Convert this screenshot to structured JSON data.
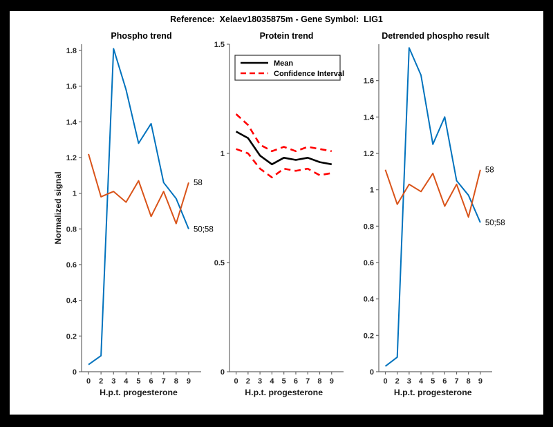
{
  "figure": {
    "title": "Reference:  Xelaev18035875m - Gene Symbol:  LIG1"
  },
  "colors": {
    "blue": "#0072BD",
    "orange": "#D95319",
    "red": "#FF0000",
    "black": "#000000",
    "axis": "#666666",
    "tick_text": "#262626",
    "label_text": "#1a1a1a",
    "background": "#FFFFFF",
    "frame": "#000000"
  },
  "chart_data": [
    {
      "type": "line",
      "title": "Phospho trend",
      "xlabel": "H.p.t. progesterone",
      "ylabel": "Normalized signal",
      "x_tick_labels": [
        "0",
        "2",
        "3",
        "4",
        "5",
        "6",
        "7",
        "8",
        "9"
      ],
      "x_values": [
        0,
        2,
        3,
        4,
        5,
        6,
        7,
        8,
        9
      ],
      "ylim": [
        0,
        1.835
      ],
      "y_ticks": [
        0,
        0.2,
        0.4,
        0.6,
        0.8,
        1,
        1.2,
        1.4,
        1.6,
        1.8
      ],
      "y_tick_labels": [
        "0",
        "0.2",
        "0.4",
        "0.6",
        "0.8",
        "1",
        "1.2",
        "1.4",
        "1.6",
        "1.8"
      ],
      "grid": false,
      "legend": null,
      "series": [
        {
          "name": "phospho-site-50-58",
          "color_key": "blue",
          "dash": null,
          "width": 2,
          "values": [
            0.04,
            0.09,
            1.81,
            1.58,
            1.28,
            1.39,
            1.06,
            0.97,
            0.8
          ],
          "end_label": "50;58"
        },
        {
          "name": "phospho-site-58",
          "color_key": "orange",
          "dash": null,
          "width": 2,
          "values": [
            1.22,
            0.98,
            1.01,
            0.95,
            1.07,
            0.87,
            1.01,
            0.83,
            1.06
          ],
          "end_label": "58"
        }
      ]
    },
    {
      "type": "line",
      "title": "Protein trend",
      "xlabel": "H.p.t. progesterone",
      "ylabel": null,
      "x_tick_labels": [
        "0",
        "2",
        "3",
        "4",
        "5",
        "6",
        "7",
        "8",
        "9"
      ],
      "x_values": [
        0,
        2,
        3,
        4,
        5,
        6,
        7,
        8,
        9
      ],
      "ylim": [
        0,
        1.5
      ],
      "y_ticks": [
        0,
        0.5,
        1,
        1.5
      ],
      "y_tick_labels": [
        "0",
        "0.5",
        "1",
        "1.5"
      ],
      "grid": false,
      "legend": {
        "position": "top-left-inside",
        "entries": [
          {
            "label": "Mean",
            "color_key": "black",
            "dash": null
          },
          {
            "label": "Confidence Interval",
            "color_key": "red",
            "dash": "8 5"
          }
        ]
      },
      "series": [
        {
          "name": "protein-mean",
          "color_key": "black",
          "dash": null,
          "width": 2.6,
          "values": [
            1.1,
            1.07,
            0.99,
            0.95,
            0.98,
            0.97,
            0.98,
            0.96,
            0.95
          ],
          "end_label": null
        },
        {
          "name": "ci-upper",
          "color_key": "red",
          "dash": "9 6",
          "width": 2.6,
          "values": [
            1.18,
            1.13,
            1.04,
            1.01,
            1.03,
            1.01,
            1.03,
            1.02,
            1.01
          ],
          "end_label": null
        },
        {
          "name": "ci-lower",
          "color_key": "red",
          "dash": "9 6",
          "width": 2.6,
          "values": [
            1.02,
            1.0,
            0.93,
            0.89,
            0.93,
            0.92,
            0.93,
            0.9,
            0.91
          ],
          "end_label": null
        }
      ]
    },
    {
      "type": "line",
      "title": "Detrended phospho result",
      "xlabel": "H.p.t. progesterone",
      "ylabel": null,
      "x_tick_labels": [
        "0",
        "2",
        "3",
        "4",
        "5",
        "6",
        "7",
        "8",
        "9"
      ],
      "x_values": [
        0,
        2,
        3,
        4,
        5,
        6,
        7,
        8,
        9
      ],
      "ylim": [
        0,
        1.8
      ],
      "y_ticks": [
        0,
        0.2,
        0.4,
        0.6,
        0.8,
        1,
        1.2,
        1.4,
        1.6
      ],
      "y_tick_labels": [
        "0",
        "0.2",
        "0.4",
        "0.6",
        "0.8",
        "1",
        "1.2",
        "1.4",
        "1.6"
      ],
      "grid": false,
      "legend": null,
      "series": [
        {
          "name": "detrended-site-50-58",
          "color_key": "blue",
          "dash": null,
          "width": 2,
          "values": [
            0.03,
            0.08,
            1.78,
            1.63,
            1.25,
            1.4,
            1.05,
            0.97,
            0.82
          ],
          "end_label": "50;58"
        },
        {
          "name": "detrended-site-58",
          "color_key": "orange",
          "dash": null,
          "width": 2,
          "values": [
            1.11,
            0.92,
            1.03,
            0.99,
            1.09,
            0.91,
            1.03,
            0.85,
            1.11
          ],
          "end_label": "58"
        }
      ]
    }
  ]
}
